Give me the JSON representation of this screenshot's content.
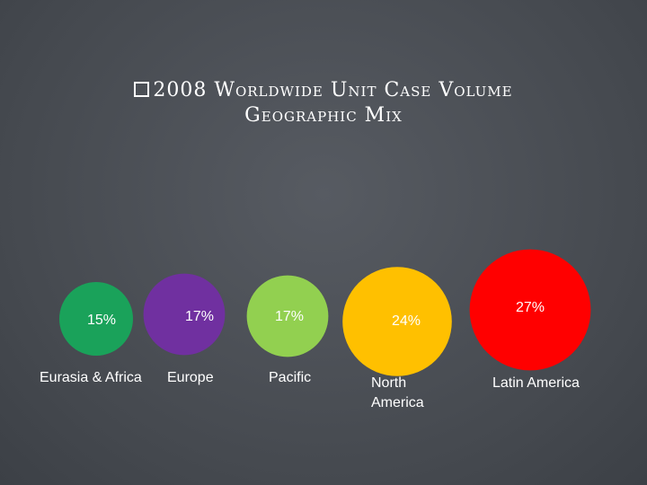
{
  "chart_data": {
    "type": "bubble",
    "title": "2008 Worldwide Unit Case Volume",
    "subtitle": "Geographic Mix",
    "categories": [
      "Eurasia & Africa",
      "Europe",
      "Pacific",
      "North America",
      "Latin America"
    ],
    "values": [
      15,
      17,
      17,
      24,
      27
    ],
    "value_labels": [
      "15%",
      "17%",
      "17%",
      "24%",
      "27%"
    ],
    "colors": [
      "#1aa25a",
      "#7030a0",
      "#92d050",
      "#ffc000",
      "#ff0000"
    ]
  }
}
